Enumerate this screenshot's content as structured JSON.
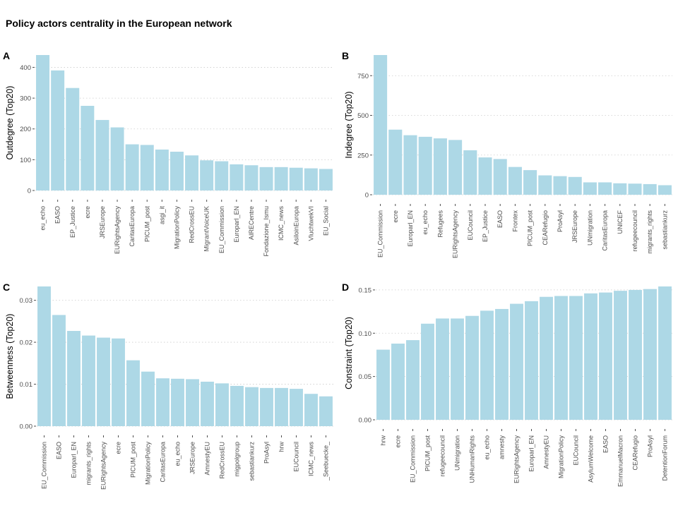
{
  "title": "Policy actors centrality in the European network",
  "chart_data": [
    {
      "tag": "A",
      "type": "bar",
      "title": "",
      "xlabel": "",
      "ylabel": "Outdegree (Top20)",
      "ylim": [
        0,
        440
      ],
      "yticks": [
        0,
        100,
        200,
        300,
        400
      ],
      "grid": true,
      "categories": [
        "eu_echo",
        "EASO",
        "EP_Justice",
        "ecre",
        "JRSEurope",
        "EURightsAgency",
        "CaritasEuropa",
        "PICUM_post",
        "asgi_it",
        "MigrationPolicy",
        "RedCrossEU",
        "MigrantVoiceUK",
        "EU_Commission",
        "Europarl_EN",
        "AIRECentre",
        "Fondazione_Ismu",
        "ICMC_news",
        "AsiloinEuropa",
        "VluchtwekVI",
        "EU_Social"
      ],
      "values": [
        440,
        390,
        333,
        275,
        229,
        205,
        150,
        148,
        133,
        126,
        114,
        98,
        95,
        85,
        82,
        76,
        76,
        74,
        72,
        70
      ]
    },
    {
      "tag": "B",
      "type": "bar",
      "title": "",
      "xlabel": "",
      "ylabel": "Indegree (Top20)",
      "ylim": [
        0,
        880
      ],
      "yticks": [
        0,
        250,
        500,
        750
      ],
      "grid": true,
      "categories": [
        "EU_Commission",
        "ecre",
        "Europarl_EN",
        "eu_echo",
        "Refugees",
        "EURightsAgency",
        "EUCouncil",
        "EP_Justice",
        "EASO",
        "Frontex",
        "PICUM_post",
        "CEARefugio",
        "ProAsyl",
        "JRSEurope",
        "UNmigration",
        "CaritasEuropa",
        "UNICEF",
        "refugeecouncil",
        "migrants_rights",
        "sebastiankurz"
      ],
      "values": [
        880,
        410,
        375,
        365,
        355,
        345,
        280,
        235,
        225,
        175,
        155,
        122,
        117,
        112,
        78,
        78,
        72,
        70,
        67,
        60
      ]
    },
    {
      "tag": "C",
      "type": "bar",
      "title": "",
      "xlabel": "",
      "ylabel": "Betweenness (Top20)",
      "ylim": [
        0,
        0.0333
      ],
      "yticks": [
        0.0,
        0.01,
        0.02,
        0.03
      ],
      "ytick_labels": [
        "0.00",
        "0.01",
        "0.02",
        "0.03"
      ],
      "grid": true,
      "categories": [
        "EU_Commission",
        "EASO",
        "Europarl_EN",
        "migrants_rights",
        "EURightsAgency",
        "ecre",
        "PICUM_post",
        "MigrationPolicy",
        "CaritasEuropa",
        "eu_echo",
        "JRSEurope",
        "AmnestyEU",
        "RedCrossEU",
        "migpolgroup",
        "sebastiankurz",
        "ProAsyl",
        "hrw",
        "EUCouncil",
        "ICMC_news",
        "_Seebuecke_"
      ],
      "values": [
        0.0333,
        0.0265,
        0.0227,
        0.0216,
        0.0211,
        0.0209,
        0.0157,
        0.013,
        0.0114,
        0.0113,
        0.0112,
        0.0106,
        0.0102,
        0.0096,
        0.0093,
        0.0091,
        0.0091,
        0.0089,
        0.0077,
        0.0071
      ]
    },
    {
      "tag": "D",
      "type": "bar",
      "title": "",
      "xlabel": "",
      "ylabel": "Constraint (Top20)",
      "ylim": [
        0,
        0.154
      ],
      "yticks": [
        0.0,
        0.05,
        0.1,
        0.15
      ],
      "ytick_labels": [
        "0.00",
        "0.05",
        "0.10",
        "0.15"
      ],
      "grid": true,
      "categories": [
        "hrw",
        "ecre",
        "EU_Commission",
        "PICUM_post",
        "refugeecouncil",
        "UNmigration",
        "UNHumanRights",
        "eu_echo",
        "amnesty",
        "EURightsAgency",
        "Europarl_EN",
        "AmnestyEU",
        "MigrationPolicy",
        "EUCouncil",
        "AsylumWelcome",
        "EASO",
        "EmmanuelMacron",
        "CEARefugio",
        "ProAsyl",
        "DetentionForum"
      ],
      "values": [
        0.081,
        0.088,
        0.092,
        0.111,
        0.117,
        0.117,
        0.12,
        0.126,
        0.128,
        0.134,
        0.137,
        0.142,
        0.143,
        0.143,
        0.146,
        0.147,
        0.149,
        0.15,
        0.151,
        0.154
      ]
    }
  ]
}
